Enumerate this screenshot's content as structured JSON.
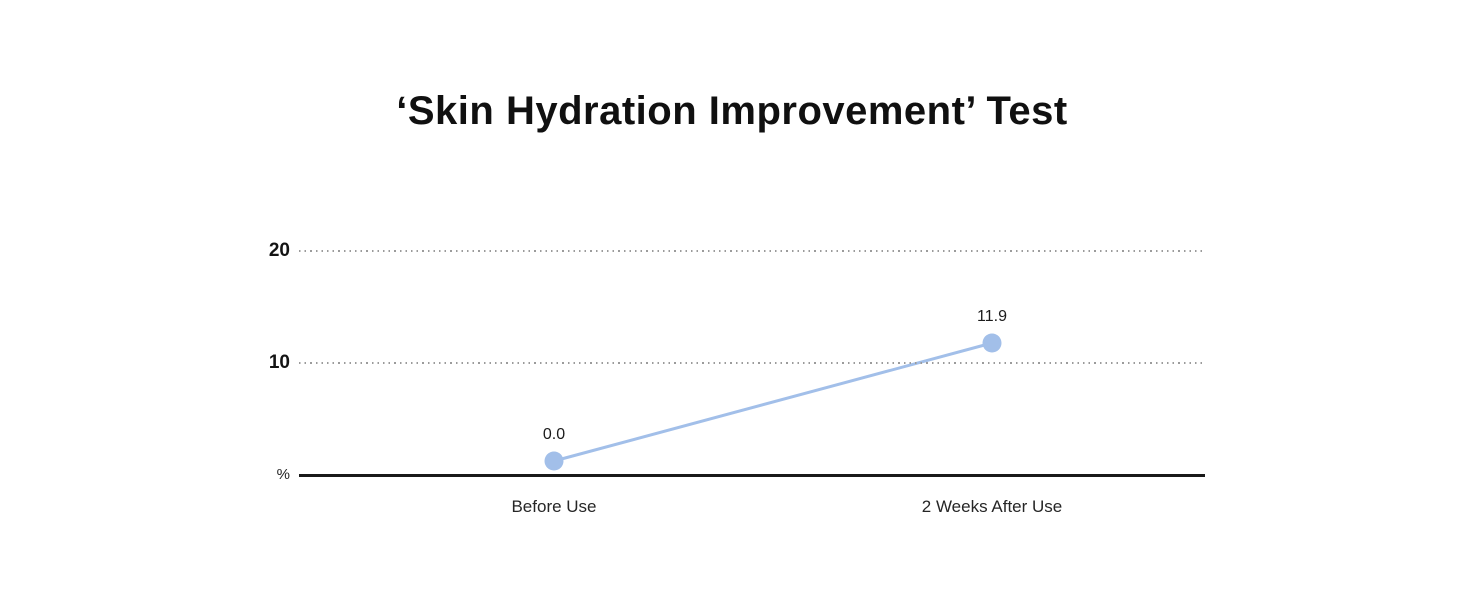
{
  "page": {
    "background": "#ffffff"
  },
  "chart_data": {
    "type": "line",
    "title": "‘Skin Hydration Improvement’ Test",
    "categories": [
      "Before Use",
      "2 Weeks After Use"
    ],
    "values": [
      0.0,
      11.9
    ],
    "point_labels": [
      "0.0",
      "11.9"
    ],
    "ylabel": "%",
    "xlabel": "",
    "yticks": [
      20,
      10
    ],
    "ylim": [
      0,
      22
    ],
    "grid": "horizontal-dotted",
    "legend": "none",
    "colors": {
      "line": "#a2bfe9",
      "marker": "#a2bfe9",
      "axis": "#191919",
      "gridline": "#9b9b9b",
      "title_text": "#101010",
      "tick_text": "#141414",
      "category_text": "#262626",
      "point_label_text": "#1b1b1b"
    }
  }
}
